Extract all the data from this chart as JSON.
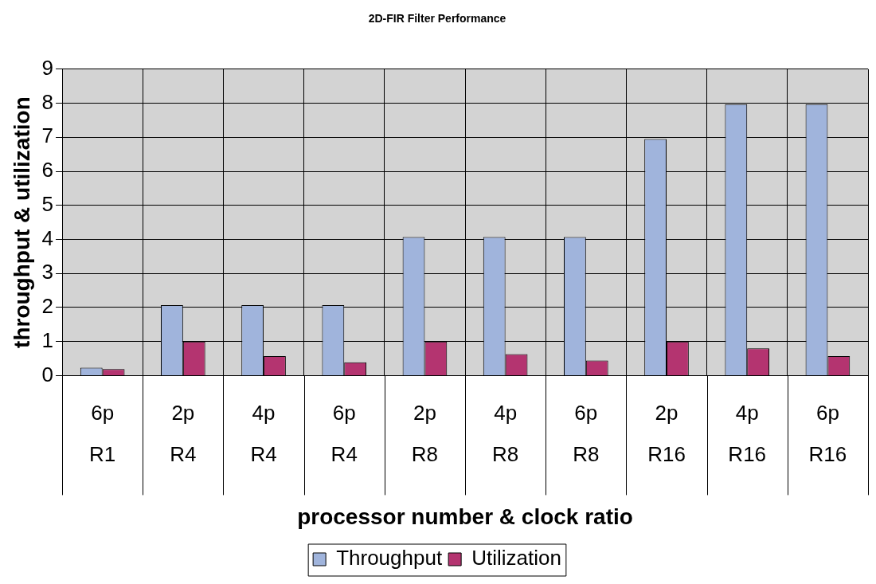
{
  "chart_data": {
    "type": "bar",
    "title": "2D-FIR Filter Performance",
    "xlabel": "processor number & clock ratio",
    "ylabel": "throughput & utilization",
    "categories": [
      "6p\nR1",
      "2p\nR4",
      "4p\nR4",
      "6p\nR4",
      "2p\nR8",
      "4p\nR8",
      "6p\nR8",
      "2p\nR16",
      "4p\nR16",
      "6p\nR16"
    ],
    "series": [
      {
        "name": "Throughput",
        "color": "#a0b4dc",
        "values": [
          0.23,
          2.07,
          2.07,
          2.07,
          4.07,
          4.07,
          4.07,
          6.95,
          7.97,
          7.97
        ]
      },
      {
        "name": "Utilization",
        "color": "#b43470",
        "values": [
          0.19,
          1.0,
          0.57,
          0.39,
          1.0,
          0.63,
          0.44,
          1.0,
          0.8,
          0.57
        ]
      }
    ],
    "ylim": [
      0,
      9
    ],
    "yticks": [
      0,
      1,
      2,
      3,
      4,
      5,
      6,
      7,
      8,
      9
    ],
    "grid": true,
    "legend": "bottom"
  }
}
